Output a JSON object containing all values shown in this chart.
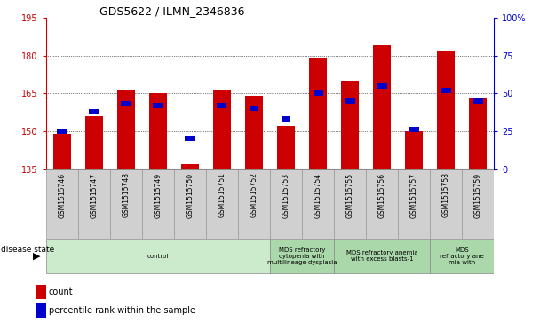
{
  "title": "GDS5622 / ILMN_2346836",
  "samples": [
    "GSM1515746",
    "GSM1515747",
    "GSM1515748",
    "GSM1515749",
    "GSM1515750",
    "GSM1515751",
    "GSM1515752",
    "GSM1515753",
    "GSM1515754",
    "GSM1515755",
    "GSM1515756",
    "GSM1515757",
    "GSM1515758",
    "GSM1515759"
  ],
  "count_values": [
    149,
    156,
    166,
    165,
    137,
    166,
    164,
    152,
    179,
    170,
    184,
    150,
    182,
    163
  ],
  "percentile_values": [
    25,
    38,
    43,
    42,
    20,
    42,
    40,
    33,
    50,
    45,
    55,
    26,
    52,
    45
  ],
  "y_min": 135,
  "y_max": 195,
  "y_ticks_left": [
    135,
    150,
    165,
    180,
    195
  ],
  "y_ticks_right": [
    0,
    25,
    50,
    75,
    100
  ],
  "disease_groups": [
    {
      "label": "control",
      "start": 0,
      "end": 7,
      "color": "#cceacc"
    },
    {
      "label": "MDS refractory\ncytopenia with\nmultilineage dysplasia",
      "start": 7,
      "end": 9,
      "color": "#aad8aa"
    },
    {
      "label": "MDS refractory anemia\nwith excess blasts-1",
      "start": 9,
      "end": 12,
      "color": "#aad8aa"
    },
    {
      "label": "MDS\nrefractory ane\nmia with",
      "start": 12,
      "end": 14,
      "color": "#aad8aa"
    }
  ],
  "bar_color": "#cc0000",
  "percentile_color": "#0000cc",
  "plot_bg": "#ffffff",
  "left_axis_color": "#cc0000",
  "right_axis_color": "#0000cc",
  "tick_bg_color": "#d0d0d0",
  "tick_border_color": "#999999"
}
